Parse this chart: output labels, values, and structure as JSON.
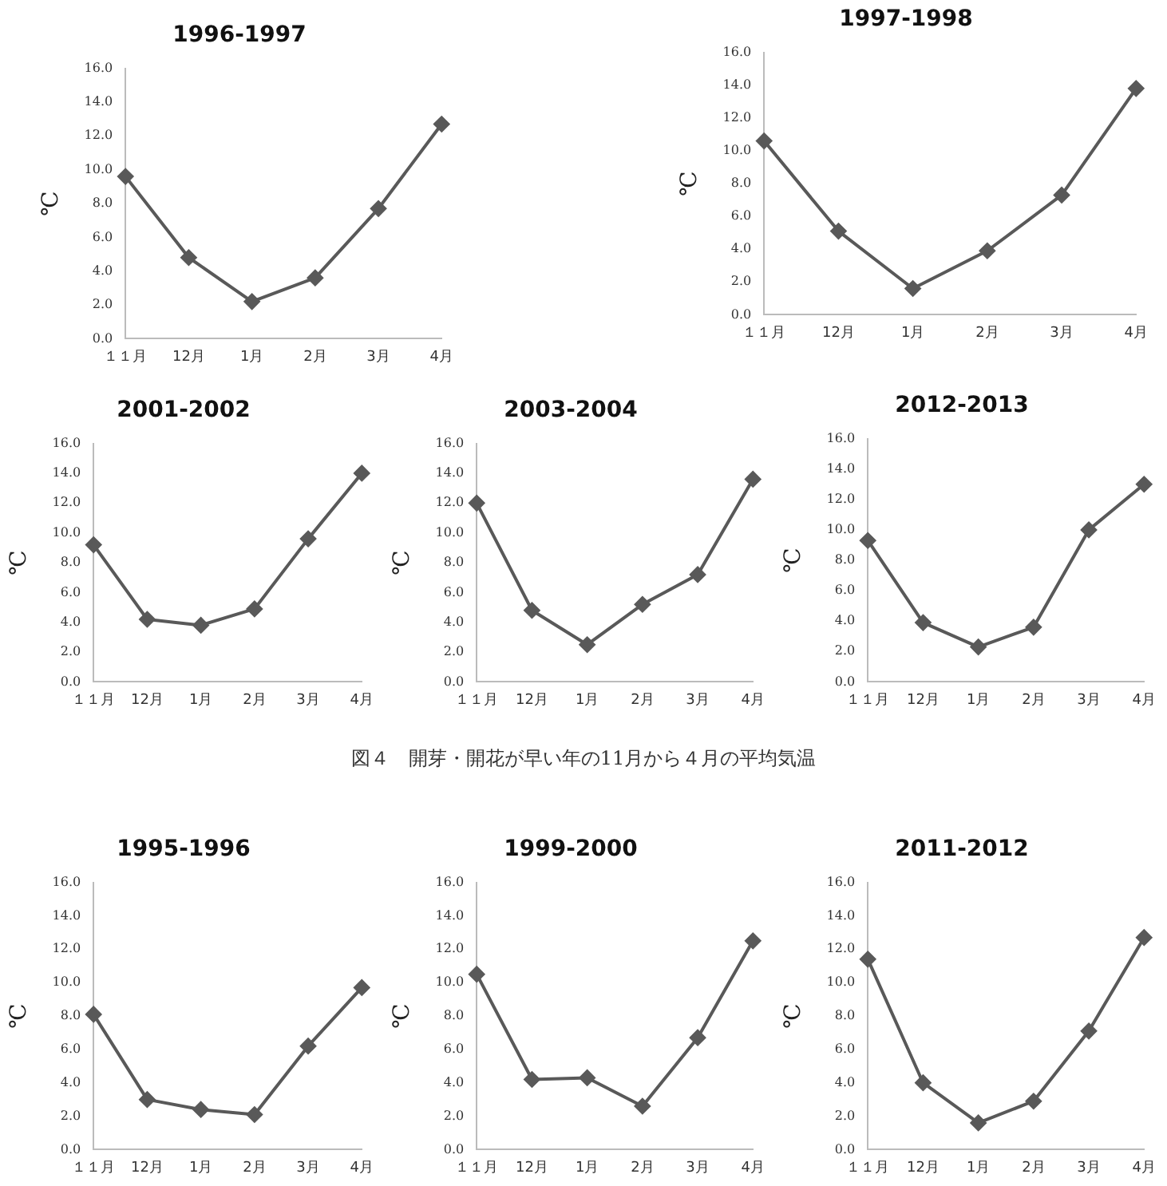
{
  "chart_data": [
    {
      "type": "line",
      "title": "1996-1997",
      "ylabel": "℃",
      "categories": [
        "１１月",
        "12月",
        "1月",
        "2月",
        "3月",
        "4月"
      ],
      "values": [
        9.6,
        4.8,
        2.2,
        3.6,
        7.7,
        12.7
      ],
      "color": "#595959",
      "marker": "diamond",
      "ylim": [
        0,
        16
      ],
      "yticks": [
        {
          "value": 0,
          "label": "0.0"
        },
        {
          "value": 2,
          "label": "2.0"
        },
        {
          "value": 4,
          "label": "4.0"
        },
        {
          "value": 6,
          "label": "6.0"
        },
        {
          "value": 8,
          "label": "8.0"
        },
        {
          "value": 10,
          "label": "10.0"
        },
        {
          "value": 12,
          "label": "12.0"
        },
        {
          "value": 14,
          "label": "14.0"
        },
        {
          "value": 16,
          "label": "16.0"
        }
      ],
      "grid": false,
      "legend": false
    },
    {
      "type": "line",
      "title": "1997-1998",
      "ylabel": "℃",
      "categories": [
        "１１月",
        "12月",
        "1月",
        "2月",
        "3月",
        "4月"
      ],
      "values": [
        10.6,
        5.1,
        1.6,
        3.9,
        7.3,
        13.8
      ],
      "color": "#595959",
      "marker": "diamond",
      "ylim": [
        0,
        16
      ],
      "yticks": [
        {
          "value": 0,
          "label": "0.0"
        },
        {
          "value": 2,
          "label": "2.0"
        },
        {
          "value": 4,
          "label": "4.0"
        },
        {
          "value": 6,
          "label": "6.0"
        },
        {
          "value": 8,
          "label": "8.0"
        },
        {
          "value": 10,
          "label": "10.0"
        },
        {
          "value": 12,
          "label": "12.0"
        },
        {
          "value": 14,
          "label": "14.0"
        },
        {
          "value": 16,
          "label": "16.0"
        }
      ],
      "grid": false,
      "legend": false
    },
    {
      "type": "line",
      "title": "2001-2002",
      "ylabel": "℃",
      "categories": [
        "１１月",
        "12月",
        "1月",
        "2月",
        "3月",
        "4月"
      ],
      "values": [
        9.2,
        4.2,
        3.8,
        4.9,
        9.6,
        14.0
      ],
      "color": "#595959",
      "marker": "diamond",
      "ylim": [
        0,
        16
      ],
      "yticks": [
        {
          "value": 0,
          "label": "0.0"
        },
        {
          "value": 2,
          "label": "2.0"
        },
        {
          "value": 4,
          "label": "4.0"
        },
        {
          "value": 6,
          "label": "6.0"
        },
        {
          "value": 8,
          "label": "8.0"
        },
        {
          "value": 10,
          "label": "10.0"
        },
        {
          "value": 12,
          "label": "12.0"
        },
        {
          "value": 14,
          "label": "14.0"
        },
        {
          "value": 16,
          "label": "16.0"
        }
      ],
      "grid": false,
      "legend": false
    },
    {
      "type": "line",
      "title": "2003-2004",
      "ylabel": "℃",
      "categories": [
        "１１月",
        "12月",
        "1月",
        "2月",
        "3月",
        "4月"
      ],
      "values": [
        12.0,
        4.8,
        2.5,
        5.2,
        7.2,
        13.6
      ],
      "color": "#595959",
      "marker": "diamond",
      "ylim": [
        0,
        16
      ],
      "yticks": [
        {
          "value": 0,
          "label": "0.0"
        },
        {
          "value": 2,
          "label": "2.0"
        },
        {
          "value": 4,
          "label": "4.0"
        },
        {
          "value": 6,
          "label": "6.0"
        },
        {
          "value": 8,
          "label": "8.0"
        },
        {
          "value": 10,
          "label": "10.0"
        },
        {
          "value": 12,
          "label": "12.0"
        },
        {
          "value": 14,
          "label": "14.0"
        },
        {
          "value": 16,
          "label": "16.0"
        }
      ],
      "grid": false,
      "legend": false
    },
    {
      "type": "line",
      "title": "2012-2013",
      "ylabel": "℃",
      "categories": [
        "１１月",
        "12月",
        "1月",
        "2月",
        "3月",
        "4月"
      ],
      "values": [
        9.3,
        3.9,
        2.3,
        3.6,
        10.0,
        13.0
      ],
      "color": "#595959",
      "marker": "diamond",
      "ylim": [
        0,
        16
      ],
      "yticks": [
        {
          "value": 0,
          "label": "0.0"
        },
        {
          "value": 2,
          "label": "2.0"
        },
        {
          "value": 4,
          "label": "4.0"
        },
        {
          "value": 6,
          "label": "6.0"
        },
        {
          "value": 8,
          "label": "8.0"
        },
        {
          "value": 10,
          "label": "10.0"
        },
        {
          "value": 12,
          "label": "12.0"
        },
        {
          "value": 14,
          "label": "14.0"
        },
        {
          "value": 16,
          "label": "16.0"
        }
      ],
      "grid": false,
      "legend": false
    },
    {
      "type": "other",
      "annotations": [
        "図４　開芽・開花が早い年の11月から４月の平均気温"
      ]
    },
    {
      "type": "line",
      "title": "1995-1996",
      "ylabel": "℃",
      "categories": [
        "１１月",
        "12月",
        "1月",
        "2月",
        "3月",
        "4月"
      ],
      "values": [
        8.1,
        3.0,
        2.4,
        2.1,
        6.2,
        9.7
      ],
      "color": "#595959",
      "marker": "diamond",
      "ylim": [
        0,
        16
      ],
      "yticks": [
        {
          "value": 0,
          "label": "0.0"
        },
        {
          "value": 2,
          "label": "2.0"
        },
        {
          "value": 4,
          "label": "4.0"
        },
        {
          "value": 6,
          "label": "6.0"
        },
        {
          "value": 8,
          "label": "8.0"
        },
        {
          "value": 10,
          "label": "10.0"
        },
        {
          "value": 12,
          "label": "12.0"
        },
        {
          "value": 14,
          "label": "14.0"
        },
        {
          "value": 16,
          "label": "16.0"
        }
      ],
      "grid": false,
      "legend": false
    },
    {
      "type": "line",
      "title": "1999-2000",
      "ylabel": "℃",
      "categories": [
        "１１月",
        "12月",
        "1月",
        "2月",
        "3月",
        "4月"
      ],
      "values": [
        10.5,
        4.2,
        4.3,
        2.6,
        6.7,
        12.5
      ],
      "color": "#595959",
      "marker": "diamond",
      "ylim": [
        0,
        16
      ],
      "yticks": [
        {
          "value": 0,
          "label": "0.0"
        },
        {
          "value": 2,
          "label": "2.0"
        },
        {
          "value": 4,
          "label": "4.0"
        },
        {
          "value": 6,
          "label": "6.0"
        },
        {
          "value": 8,
          "label": "8.0"
        },
        {
          "value": 10,
          "label": "10.0"
        },
        {
          "value": 12,
          "label": "12.0"
        },
        {
          "value": 14,
          "label": "14.0"
        },
        {
          "value": 16,
          "label": "16.0"
        }
      ],
      "grid": false,
      "legend": false
    },
    {
      "type": "line",
      "title": "2011-2012",
      "ylabel": "℃",
      "categories": [
        "１１月",
        "12月",
        "1月",
        "2月",
        "3月",
        "4月"
      ],
      "values": [
        11.4,
        4.0,
        1.6,
        2.9,
        7.1,
        12.7
      ],
      "color": "#595959",
      "marker": "diamond",
      "ylim": [
        0,
        16
      ],
      "yticks": [
        {
          "value": 0,
          "label": "0.0"
        },
        {
          "value": 2,
          "label": "2.0"
        },
        {
          "value": 4,
          "label": "4.0"
        },
        {
          "value": 6,
          "label": "6.0"
        },
        {
          "value": 8,
          "label": "8.0"
        },
        {
          "value": 10,
          "label": "10.0"
        },
        {
          "value": 12,
          "label": "12.0"
        },
        {
          "value": 14,
          "label": "14.0"
        },
        {
          "value": 16,
          "label": "16.0"
        }
      ],
      "grid": false,
      "legend": false
    }
  ]
}
